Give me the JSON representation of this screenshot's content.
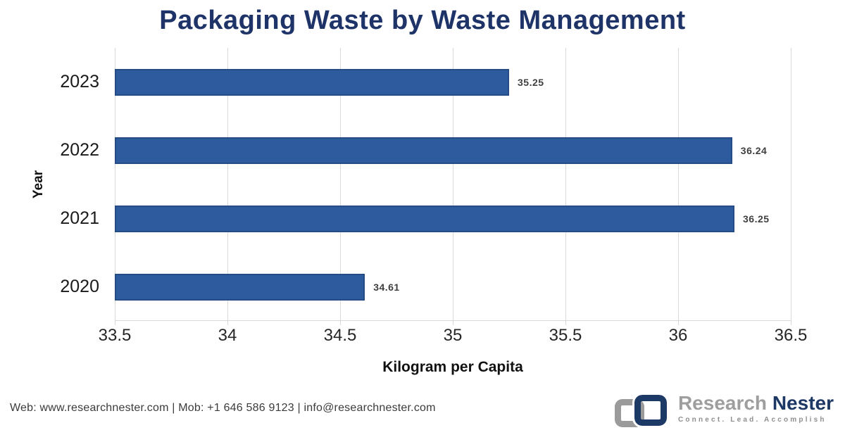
{
  "title": "Packaging Waste by Waste Management",
  "chart_data": {
    "type": "bar",
    "orientation": "horizontal",
    "categories": [
      "2023",
      "2022",
      "2021",
      "2020"
    ],
    "values": [
      35.25,
      36.24,
      36.25,
      34.61
    ],
    "value_labels": [
      "35.25",
      "36.24",
      "36.25",
      "34.61"
    ],
    "title": "Packaging Waste by Waste Management",
    "xlabel": "Kilogram per Capita",
    "ylabel": "Year",
    "xlim": [
      33.5,
      36.5
    ],
    "xticks": [
      "33.5",
      "34",
      "34.5",
      "35",
      "35.5",
      "36",
      "36.5"
    ],
    "grid": "vertical-only",
    "legend": "none",
    "bar_color": "#2E5B9E",
    "bar_border_color": "#264C85",
    "gridline_color": "#D9D9D9",
    "title_color": "#1E3468"
  },
  "footer": {
    "contact_line": "Web: www.researchnester.com | Mob: +1 646 586 9123 | info@researchnester.com",
    "logo": {
      "brand_gray": "Research",
      "brand_navy": "Nester",
      "tagline": "Connect. Lead. Accomplish",
      "gray_color": "#9E9E9E",
      "navy_color": "#1D3864"
    }
  }
}
